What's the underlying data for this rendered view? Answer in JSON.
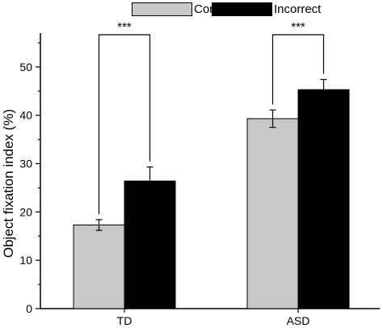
{
  "chart_data": {
    "type": "bar",
    "categories": [
      "TD",
      "ASD"
    ],
    "series": [
      {
        "name": "Correct",
        "values": [
          17.3,
          39.3
        ],
        "errors": [
          1.1,
          1.8
        ],
        "color": "#c8c8c8"
      },
      {
        "name": "Incorrect",
        "values": [
          26.4,
          45.3
        ],
        "errors": [
          2.9,
          2.1
        ],
        "color": "#000000"
      }
    ],
    "ylabel": "Object fixation index (%)",
    "xlabel": "",
    "ylim": [
      0,
      57
    ],
    "yticks": [
      0,
      10,
      20,
      30,
      40,
      50
    ],
    "significance": [
      {
        "category": "TD",
        "label": "***"
      },
      {
        "category": "ASD",
        "label": "***"
      }
    ],
    "grid": false,
    "legend_position": "top"
  }
}
